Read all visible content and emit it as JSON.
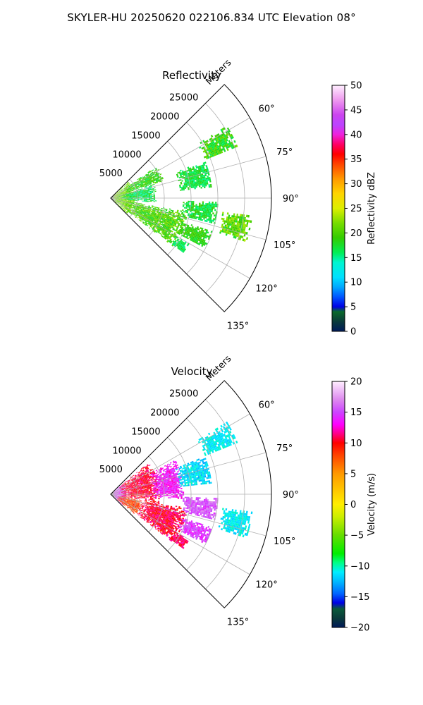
{
  "suptitle": "SKYLER-HU  20250620  022106.834 UTC Elevation 08°",
  "colors": {
    "grid": "#b0b0b0",
    "frame": "#000000"
  },
  "chart_data": [
    {
      "type": "heatmap",
      "subtype": "polar-sector-ppi",
      "title": "Reflectivity",
      "radial_axis_label": "Meters",
      "radial_ticks": [
        5000,
        10000,
        15000,
        20000,
        25000
      ],
      "radial_tick_labels": [
        "5000",
        "10000",
        "15000",
        "20000",
        "25000"
      ],
      "rlim": [
        0,
        30000
      ],
      "angular_ticks": [
        60,
        75,
        90,
        105,
        120,
        135
      ],
      "angular_tick_labels": [
        "60°",
        "75°",
        "90°",
        "105°",
        "120°",
        "135°"
      ],
      "theta_range_deg": [
        45,
        135
      ],
      "grid": true,
      "colorbar": {
        "label": "Reflectivity dBZ",
        "range": [
          0,
          50
        ],
        "ticks": [
          0,
          5,
          10,
          15,
          20,
          25,
          30,
          35,
          40,
          45,
          50
        ],
        "tick_labels": [
          "0",
          "5",
          "10",
          "15",
          "20",
          "25",
          "30",
          "35",
          "40",
          "45",
          "50"
        ],
        "stops": [
          [
            0,
            "#001a5a"
          ],
          [
            2,
            "#0a3a3a"
          ],
          [
            4,
            "#0a6a2a"
          ],
          [
            5,
            "#0000e6"
          ],
          [
            7,
            "#0055ff"
          ],
          [
            9,
            "#00a8ff"
          ],
          [
            11,
            "#00e0ff"
          ],
          [
            14,
            "#00f5d0"
          ],
          [
            16,
            "#00ee55"
          ],
          [
            19,
            "#33cc00"
          ],
          [
            22,
            "#77dd00"
          ],
          [
            25,
            "#ddee00"
          ],
          [
            28,
            "#ffd400"
          ],
          [
            31,
            "#ff9900"
          ],
          [
            34,
            "#ff4400"
          ],
          [
            36,
            "#ff0000"
          ],
          [
            38,
            "#ff0066"
          ],
          [
            40,
            "#ee22dd"
          ],
          [
            42,
            "#bb44ff"
          ],
          [
            44,
            "#cc44ee"
          ],
          [
            47,
            "#ee99ee"
          ],
          [
            50,
            "#ffeeff"
          ]
        ]
      },
      "echo_regions": [
        {
          "az": [
            46,
            134
          ],
          "r": [
            0,
            4500
          ],
          "v": [
            19,
            24
          ]
        },
        {
          "az": [
            55,
            72
          ],
          "r": [
            3000,
            10500
          ],
          "v": [
            16,
            21
          ]
        },
        {
          "az": [
            100,
            128
          ],
          "r": [
            3000,
            14500
          ],
          "v": [
            17,
            23
          ]
        },
        {
          "az": [
            72,
            96
          ],
          "r": [
            2000,
            8500
          ],
          "v": [
            14,
            19
          ]
        },
        {
          "az": [
            58,
            68
          ],
          "r": [
            19000,
            25500
          ],
          "v": [
            16,
            22
          ]
        },
        {
          "az": [
            68,
            84
          ],
          "r": [
            13000,
            19000
          ],
          "v": [
            15,
            19
          ]
        },
        {
          "az": [
            92,
            104
          ],
          "r": [
            13500,
            20000
          ],
          "v": [
            15,
            20
          ]
        },
        {
          "az": [
            97,
            108
          ],
          "r": [
            21000,
            26500
          ],
          "v": [
            17,
            24
          ]
        },
        {
          "az": [
            108,
            118
          ],
          "r": [
            14000,
            20000
          ],
          "v": [
            17,
            20
          ]
        },
        {
          "az": [
            120,
            127
          ],
          "r": [
            14000,
            17000
          ],
          "v": [
            15,
            18
          ]
        }
      ]
    },
    {
      "type": "heatmap",
      "subtype": "polar-sector-ppi",
      "title": "Velocity",
      "radial_axis_label": "Meters",
      "radial_ticks": [
        5000,
        10000,
        15000,
        20000,
        25000
      ],
      "radial_tick_labels": [
        "5000",
        "10000",
        "15000",
        "20000",
        "25000"
      ],
      "rlim": [
        0,
        30000
      ],
      "angular_ticks": [
        60,
        75,
        90,
        105,
        120,
        135
      ],
      "angular_tick_labels": [
        "60°",
        "75°",
        "90°",
        "105°",
        "120°",
        "135°"
      ],
      "theta_range_deg": [
        45,
        135
      ],
      "grid": true,
      "colorbar": {
        "label": "Velocity (m/s)",
        "range": [
          -20,
          20
        ],
        "ticks": [
          -20,
          -15,
          -10,
          -5,
          0,
          5,
          10,
          15,
          20
        ],
        "tick_labels": [
          "−20",
          "−15",
          "−10",
          "−5",
          "0",
          "5",
          "10",
          "15",
          "20"
        ],
        "stops": [
          [
            -20,
            "#001a5a"
          ],
          [
            -18.5,
            "#0a3a3a"
          ],
          [
            -17,
            "#0a5a3a"
          ],
          [
            -16,
            "#0000e6"
          ],
          [
            -14.5,
            "#0066ff"
          ],
          [
            -12.5,
            "#00bbff"
          ],
          [
            -11,
            "#00eeff"
          ],
          [
            -9.5,
            "#00ff88"
          ],
          [
            -8,
            "#00ee00"
          ],
          [
            -5,
            "#66dd00"
          ],
          [
            -2,
            "#ccee00"
          ],
          [
            0,
            "#ffee00"
          ],
          [
            2,
            "#ffcc00"
          ],
          [
            5,
            "#ff9900"
          ],
          [
            8,
            "#ff4400"
          ],
          [
            10,
            "#ff0000"
          ],
          [
            11.5,
            "#ff0088"
          ],
          [
            13,
            "#ff00ff"
          ],
          [
            15,
            "#cc44ff"
          ],
          [
            17,
            "#dd88ee"
          ],
          [
            20,
            "#ffeeff"
          ]
        ]
      },
      "echo_regions": [
        {
          "az": [
            46,
            134
          ],
          "r": [
            0,
            3000
          ],
          "v": [
            13,
            17
          ]
        },
        {
          "az": [
            50,
            100
          ],
          "r": [
            2000,
            9000
          ],
          "v": [
            9,
            12
          ]
        },
        {
          "az": [
            100,
            130
          ],
          "r": [
            1500,
            6000
          ],
          "v": [
            6,
            10
          ]
        },
        {
          "az": [
            100,
            128
          ],
          "r": [
            6000,
            14500
          ],
          "v": [
            9,
            12
          ]
        },
        {
          "az": [
            62,
            94
          ],
          "r": [
            8000,
            13500
          ],
          "v": [
            12,
            15
          ]
        },
        {
          "az": [
            58,
            68
          ],
          "r": [
            19000,
            25500
          ],
          "v": [
            -12,
            -10
          ]
        },
        {
          "az": [
            68,
            84
          ],
          "r": [
            13000,
            19000
          ],
          "v": [
            -13,
            -10
          ]
        },
        {
          "az": [
            92,
            104
          ],
          "r": [
            13500,
            20000
          ],
          "v": [
            14,
            17
          ]
        },
        {
          "az": [
            97,
            108
          ],
          "r": [
            21000,
            26500
          ],
          "v": [
            -12,
            -10
          ]
        },
        {
          "az": [
            108,
            118
          ],
          "r": [
            14000,
            20000
          ],
          "v": [
            13,
            16
          ]
        },
        {
          "az": [
            120,
            127
          ],
          "r": [
            14000,
            17000
          ],
          "v": [
            10,
            12
          ]
        }
      ]
    }
  ]
}
